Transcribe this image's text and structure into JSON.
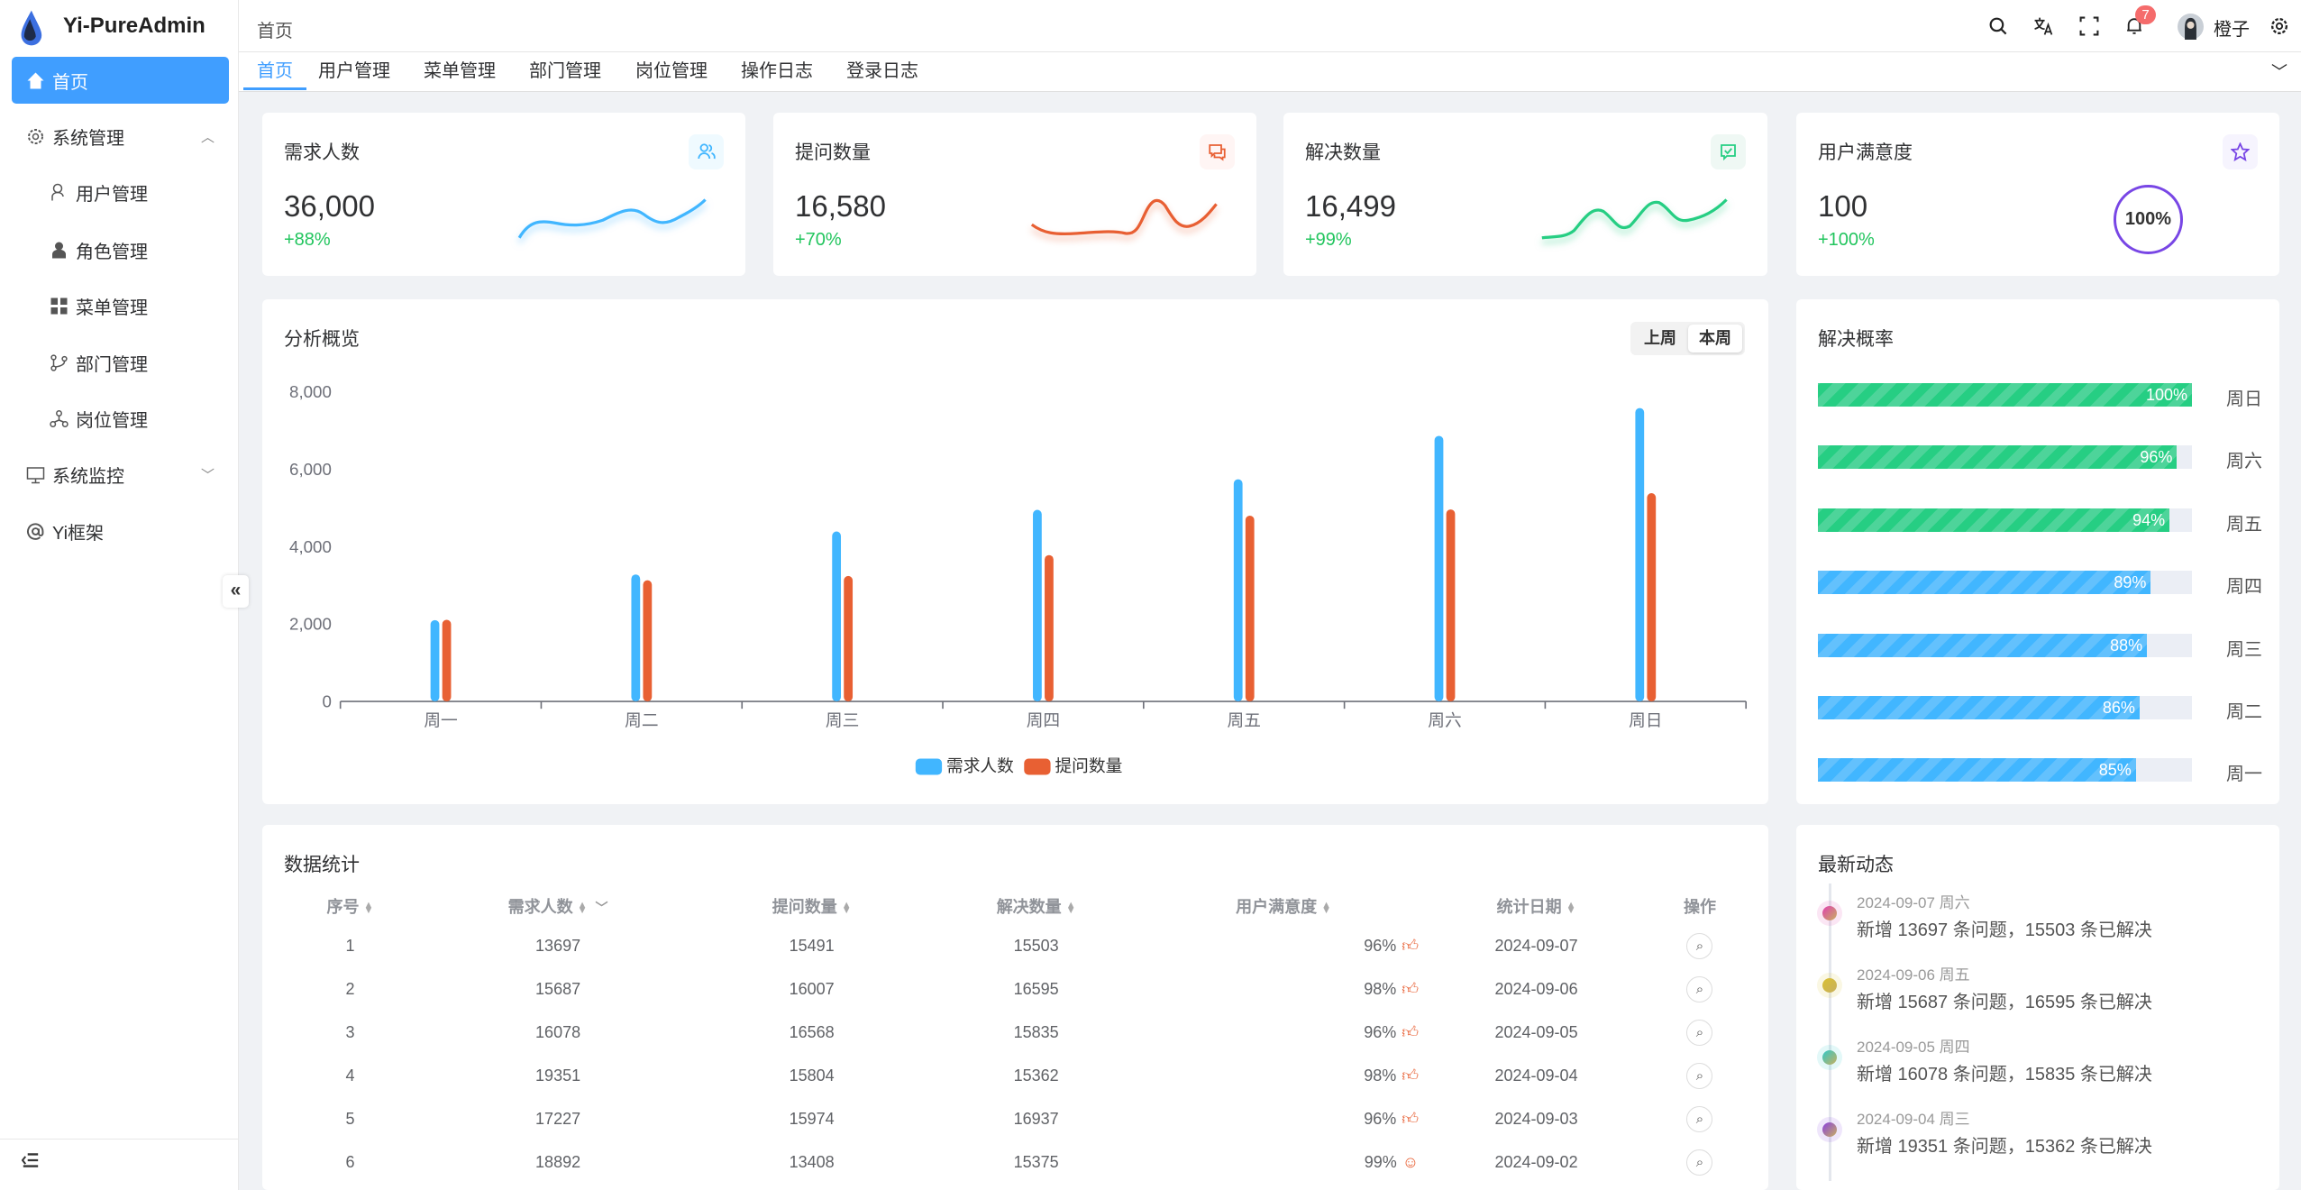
{
  "app": {
    "title": "Yi-PureAdmin"
  },
  "sidebar": {
    "items": [
      {
        "label": "首页",
        "icon": "home-icon",
        "active": true
      },
      {
        "label": "系统管理",
        "icon": "gear-icon",
        "expanded": true
      },
      {
        "label": "用户管理",
        "icon": "user-icon"
      },
      {
        "label": "角色管理",
        "icon": "role-icon"
      },
      {
        "label": "菜单管理",
        "icon": "grid-icon"
      },
      {
        "label": "部门管理",
        "icon": "branch-icon"
      },
      {
        "label": "岗位管理",
        "icon": "org-icon"
      },
      {
        "label": "系统监控",
        "icon": "monitor-icon",
        "expanded": false
      },
      {
        "label": "Yi框架",
        "icon": "at-icon"
      }
    ],
    "collapse_glyph": "«"
  },
  "header": {
    "breadcrumb": "首页",
    "notifications": "7",
    "username": "橙子"
  },
  "tabs": [
    {
      "label": "首页",
      "active": true
    },
    {
      "label": "用户管理"
    },
    {
      "label": "菜单管理"
    },
    {
      "label": "部门管理"
    },
    {
      "label": "岗位管理"
    },
    {
      "label": "操作日志"
    },
    {
      "label": "登录日志"
    }
  ],
  "stats": [
    {
      "title": "需求人数",
      "value": "36,000",
      "change": "+88%",
      "color": "#41b6ff",
      "bg": "#effaff"
    },
    {
      "title": "提问数量",
      "value": "16,580",
      "change": "+70%",
      "color": "#e85f33",
      "bg": "#fff5f4"
    },
    {
      "title": "解决数量",
      "value": "16,499",
      "change": "+99%",
      "color": "#26ce83",
      "bg": "#eff8f4"
    },
    {
      "title": "用户满意度",
      "value": "100",
      "change": "+100%",
      "color": "#7846e5",
      "bg": "#f6f4fe",
      "gauge": "100%"
    }
  ],
  "overview": {
    "title": "分析概览",
    "toggle": [
      "上周",
      "本周"
    ],
    "selected": "本周"
  },
  "chart_data": {
    "type": "bar",
    "categories": [
      "周一",
      "周二",
      "周三",
      "周四",
      "周五",
      "周六",
      "周日"
    ],
    "series": [
      {
        "name": "需求人数",
        "color": "#41b6ff",
        "values": [
          2100,
          3280,
          4390,
          4950,
          5740,
          6860,
          7580
        ]
      },
      {
        "name": "提问数量",
        "color": "#e86033",
        "values": [
          2110,
          3130,
          3240,
          3780,
          4800,
          4960,
          5380
        ]
      }
    ],
    "yticks": [
      "0",
      "2,000",
      "4,000",
      "6,000",
      "8,000"
    ],
    "ylim": [
      0,
      8000
    ],
    "legend": "bottom"
  },
  "solve_rate": {
    "title": "解决概率",
    "items": [
      {
        "day": "周日",
        "pct": 100,
        "label": "100%",
        "color": "#26ce83"
      },
      {
        "day": "周六",
        "pct": 96,
        "label": "96%",
        "color": "#26ce83"
      },
      {
        "day": "周五",
        "pct": 94,
        "label": "94%",
        "color": "#26ce83"
      },
      {
        "day": "周四",
        "pct": 89,
        "label": "89%",
        "color": "#41b6ff"
      },
      {
        "day": "周三",
        "pct": 88,
        "label": "88%",
        "color": "#41b6ff"
      },
      {
        "day": "周二",
        "pct": 86,
        "label": "86%",
        "color": "#41b6ff"
      },
      {
        "day": "周一",
        "pct": 85,
        "label": "85%",
        "color": "#41b6ff"
      }
    ]
  },
  "table": {
    "title": "数据统计",
    "columns": [
      "序号",
      "需求人数",
      "提问数量",
      "解决数量",
      "用户满意度",
      "统计日期",
      "操作"
    ],
    "rows": [
      [
        "1",
        "13697",
        "15491",
        "15503",
        "96%",
        "2024-09-07"
      ],
      [
        "2",
        "15687",
        "16007",
        "16595",
        "98%",
        "2024-09-06"
      ],
      [
        "3",
        "16078",
        "16568",
        "15835",
        "96%",
        "2024-09-05"
      ],
      [
        "4",
        "19351",
        "15804",
        "15362",
        "98%",
        "2024-09-04"
      ],
      [
        "5",
        "17227",
        "15974",
        "16937",
        "96%",
        "2024-09-03"
      ],
      [
        "6",
        "18892",
        "13408",
        "15375",
        "99%",
        "2024-09-02"
      ]
    ]
  },
  "timeline": {
    "title": "最新动态",
    "items": [
      {
        "date": "2024-09-07 周六",
        "text": "新增 13697 条问题，15503 条已解决",
        "color": "#e040b0"
      },
      {
        "date": "2024-09-06 周五",
        "text": "新增 15687 条问题，16595 条已解决",
        "color": "#d9c030"
      },
      {
        "date": "2024-09-05 周四",
        "text": "新增 16078 条问题，15835 条已解决",
        "color": "#30c8c8"
      },
      {
        "date": "2024-09-04 周三",
        "text": "新增 19351 条问题，15362 条已解决",
        "color": "#8a40e0"
      }
    ]
  }
}
